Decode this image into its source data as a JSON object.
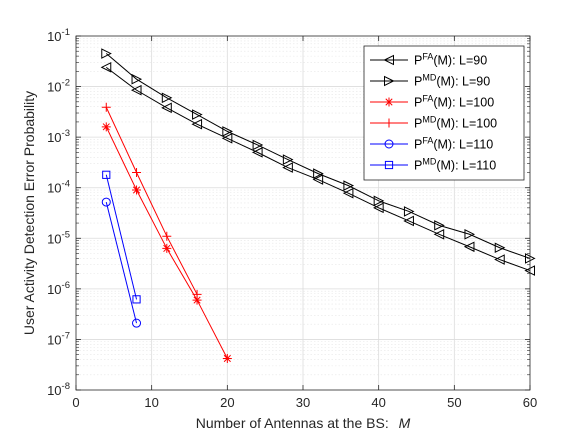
{
  "chart_data": {
    "type": "line",
    "xlabel": "Number of Antennas at the BS:",
    "xlabel_var": "M",
    "ylabel": "User Activity Detection Error Probability",
    "xlim": [
      0,
      60
    ],
    "ylim_exponents": [
      -8,
      -1
    ],
    "yscale": "log",
    "grid": true,
    "minor_grid": true,
    "legend_position": "top-right",
    "x_ticks": [
      0,
      10,
      20,
      30,
      40,
      50,
      60
    ],
    "y_ticks": [
      {
        "base": "10",
        "exp": "-8"
      },
      {
        "base": "10",
        "exp": "-7"
      },
      {
        "base": "10",
        "exp": "-6"
      },
      {
        "base": "10",
        "exp": "-5"
      },
      {
        "base": "10",
        "exp": "-4"
      },
      {
        "base": "10",
        "exp": "-3"
      },
      {
        "base": "10",
        "exp": "-2"
      },
      {
        "base": "10",
        "exp": "-1"
      }
    ],
    "series": [
      {
        "legend": {
          "p": "P",
          "sup": "FA",
          "rest": "(M): L=90"
        },
        "color": "#000000",
        "marker": "triangle-left",
        "x": [
          4,
          8,
          12,
          16,
          20,
          24,
          28,
          32,
          36,
          40,
          44,
          48,
          52,
          56,
          60
        ],
        "y": [
          0.024,
          0.0085,
          0.0038,
          0.0018,
          0.00095,
          0.0005,
          0.00025,
          0.000145,
          7.8e-05,
          4e-05,
          2.2e-05,
          1.2e-05,
          6.8e-06,
          3.8e-06,
          2.3e-06
        ]
      },
      {
        "legend": {
          "p": "P",
          "sup": "MD",
          "rest": "(M): L=90"
        },
        "color": "#000000",
        "marker": "triangle-right",
        "x": [
          4,
          8,
          12,
          16,
          20,
          24,
          28,
          32,
          36,
          40,
          44,
          48,
          52,
          56,
          60
        ],
        "y": [
          0.045,
          0.014,
          0.006,
          0.0028,
          0.0013,
          0.0007,
          0.00036,
          0.00019,
          0.00011,
          5.5e-05,
          3.4e-05,
          1.8e-05,
          1.2e-05,
          6.5e-06,
          4e-06
        ]
      },
      {
        "legend": {
          "p": "P",
          "sup": "FA",
          "rest": "(M): L=100"
        },
        "color": "#ff0000",
        "marker": "asterisk",
        "x": [
          4,
          8,
          12,
          16,
          20
        ],
        "y": [
          0.0016,
          9e-05,
          6.3e-06,
          6e-07,
          4.2e-08
        ]
      },
      {
        "legend": {
          "p": "P",
          "sup": "MD",
          "rest": "(M): L=100"
        },
        "color": "#ff0000",
        "marker": "plus",
        "x": [
          4,
          8,
          12,
          16
        ],
        "y": [
          0.0039,
          0.0002,
          1.1e-05,
          7.8e-07
        ]
      },
      {
        "legend": {
          "p": "P",
          "sup": "FA",
          "rest": "(M): L=110"
        },
        "color": "#0000ff",
        "marker": "circle",
        "x": [
          4,
          8
        ],
        "y": [
          5.2e-05,
          2.1e-07
        ]
      },
      {
        "legend": {
          "p": "P",
          "sup": "MD",
          "rest": "(M): L=110"
        },
        "color": "#0000ff",
        "marker": "square",
        "x": [
          4,
          8
        ],
        "y": [
          0.00018,
          6.2e-07
        ]
      }
    ]
  }
}
